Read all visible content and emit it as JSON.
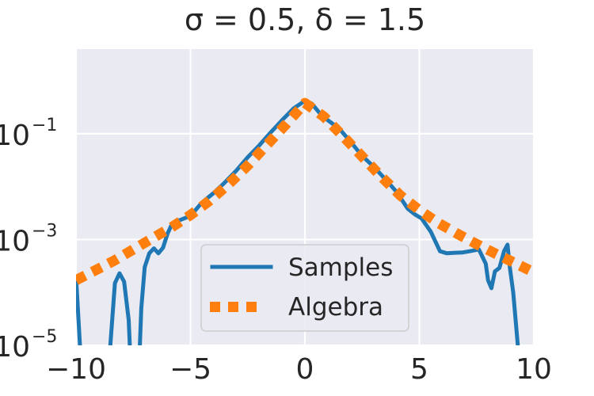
{
  "chart_data": {
    "type": "line",
    "title": "σ = 0.5, δ = 1.5",
    "xlabel": "",
    "ylabel": "",
    "xlim": [
      -10,
      10
    ],
    "ylim_log10": [
      -5,
      0.6
    ],
    "yscale": "log",
    "grid": true,
    "legend_position": "lower-center",
    "x_ticks": [
      -10,
      -5,
      0,
      5,
      10
    ],
    "x_tick_labels": [
      "−10",
      "−5",
      "0",
      "5",
      "10"
    ],
    "y_ticks_log10": [
      -5,
      -3,
      -1
    ],
    "y_tick_labels": [
      {
        "base": "10",
        "exp": "−5"
      },
      {
        "base": "10",
        "exp": "−3"
      },
      {
        "base": "10",
        "exp": "−1"
      }
    ],
    "series": [
      {
        "name": "Samples",
        "style": "solid",
        "color": "#1f77b4",
        "points": [
          [
            -10.0,
            0.0002
          ],
          [
            -9.8,
            6e-06
          ],
          [
            -9.6,
            1e-06
          ],
          [
            -8.7,
            1e-06
          ],
          [
            -8.5,
            1e-05
          ],
          [
            -8.3,
            0.00015
          ],
          [
            -8.1,
            0.00023
          ],
          [
            -7.9,
            0.00016
          ],
          [
            -7.7,
            3e-05
          ],
          [
            -7.55,
            1e-06
          ],
          [
            -7.3,
            1e-06
          ],
          [
            -7.15,
            5e-05
          ],
          [
            -7.0,
            0.0003
          ],
          [
            -6.8,
            0.00055
          ],
          [
            -6.6,
            0.00068
          ],
          [
            -6.4,
            0.00055
          ],
          [
            -6.2,
            0.0007
          ],
          [
            -6.0,
            0.0013
          ],
          [
            -5.8,
            0.002
          ],
          [
            -5.5,
            0.0023
          ],
          [
            -5.0,
            0.0028
          ],
          [
            -4.5,
            0.005
          ],
          [
            -4.0,
            0.0075
          ],
          [
            -3.5,
            0.012
          ],
          [
            -3.0,
            0.02
          ],
          [
            -2.5,
            0.036
          ],
          [
            -2.0,
            0.06
          ],
          [
            -1.5,
            0.105
          ],
          [
            -1.0,
            0.18
          ],
          [
            -0.5,
            0.3
          ],
          [
            0.0,
            0.42
          ],
          [
            0.3,
            0.37
          ],
          [
            0.7,
            0.23
          ],
          [
            1.0,
            0.18
          ],
          [
            1.5,
            0.125
          ],
          [
            2.0,
            0.07
          ],
          [
            2.5,
            0.038
          ],
          [
            3.0,
            0.024
          ],
          [
            3.5,
            0.014
          ],
          [
            4.0,
            0.008
          ],
          [
            4.5,
            0.0038
          ],
          [
            4.8,
            0.003
          ],
          [
            5.1,
            0.0025
          ],
          [
            5.5,
            0.0014
          ],
          [
            5.9,
            0.0006
          ],
          [
            6.2,
            0.00055
          ],
          [
            6.5,
            0.00056
          ],
          [
            6.9,
            0.00057
          ],
          [
            7.2,
            0.0006
          ],
          [
            7.6,
            0.00065
          ],
          [
            7.9,
            0.00035
          ],
          [
            8.0,
            0.00017
          ],
          [
            8.15,
            0.00012
          ],
          [
            8.3,
            0.00025
          ],
          [
            8.5,
            0.00029
          ],
          [
            8.7,
            0.0006
          ],
          [
            8.85,
            0.0008
          ],
          [
            8.95,
            0.0003
          ],
          [
            9.1,
            0.0001
          ],
          [
            9.3,
            1e-05
          ],
          [
            9.4,
            1e-06
          ]
        ]
      },
      {
        "name": "Algebra",
        "style": "dotted",
        "color": "#ff7f0e",
        "points": [
          [
            -10.0,
            0.00017
          ],
          [
            -9.17,
            0.00026
          ],
          [
            -8.33,
            0.0004
          ],
          [
            -7.5,
            0.00065
          ],
          [
            -6.67,
            0.00105
          ],
          [
            -5.83,
            0.0017
          ],
          [
            -5.0,
            0.0029
          ],
          [
            -4.17,
            0.0054
          ],
          [
            -3.33,
            0.0112
          ],
          [
            -2.5,
            0.025
          ],
          [
            -1.67,
            0.061
          ],
          [
            -0.83,
            0.15
          ],
          [
            0.0,
            0.38
          ],
          [
            0.83,
            0.21
          ],
          [
            1.67,
            0.089
          ],
          [
            2.5,
            0.037
          ],
          [
            3.33,
            0.0155
          ],
          [
            4.17,
            0.0068
          ],
          [
            5.0,
            0.0036
          ],
          [
            5.83,
            0.00205
          ],
          [
            6.67,
            0.00128
          ],
          [
            7.5,
            0.00082
          ],
          [
            8.33,
            0.00054
          ],
          [
            9.17,
            0.00036
          ],
          [
            10.0,
            0.00024
          ]
        ]
      }
    ]
  }
}
